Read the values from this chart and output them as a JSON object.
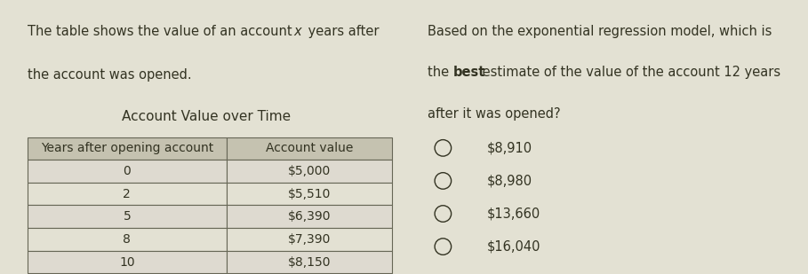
{
  "bg_color": "#e3e1d3",
  "left_text_line1_pre": "The table shows the value of an account ",
  "left_text_line1_italic": "x",
  "left_text_line1_post": " years after",
  "left_text_line2": "the account was opened.",
  "table_title": "Account Value over Time",
  "col_headers": [
    "Years after opening account",
    "Account value"
  ],
  "table_rows": [
    [
      "0",
      "$5,000"
    ],
    [
      "2",
      "$5,510"
    ],
    [
      "5",
      "$6,390"
    ],
    [
      "8",
      "$7,390"
    ],
    [
      "10",
      "$8,150"
    ]
  ],
  "right_text_line1": "Based on the exponential regression model, which is",
  "right_text_line2_pre": "the ",
  "right_text_line2_bold": "best",
  "right_text_line2_post": " estimate of the value of the account 12 years",
  "right_text_line3": "after it was opened?",
  "choices": [
    "$8,910",
    "$8,980",
    "$13,660",
    "$16,040"
  ],
  "table_border_color": "#666655",
  "header_bg": "#c5c2b0",
  "row_bg_alt": "#dedad0",
  "row_bg_main": "#e3e1d3",
  "text_color": "#333322",
  "font_size_body": 10.5,
  "font_size_table": 10,
  "font_size_title": 11
}
